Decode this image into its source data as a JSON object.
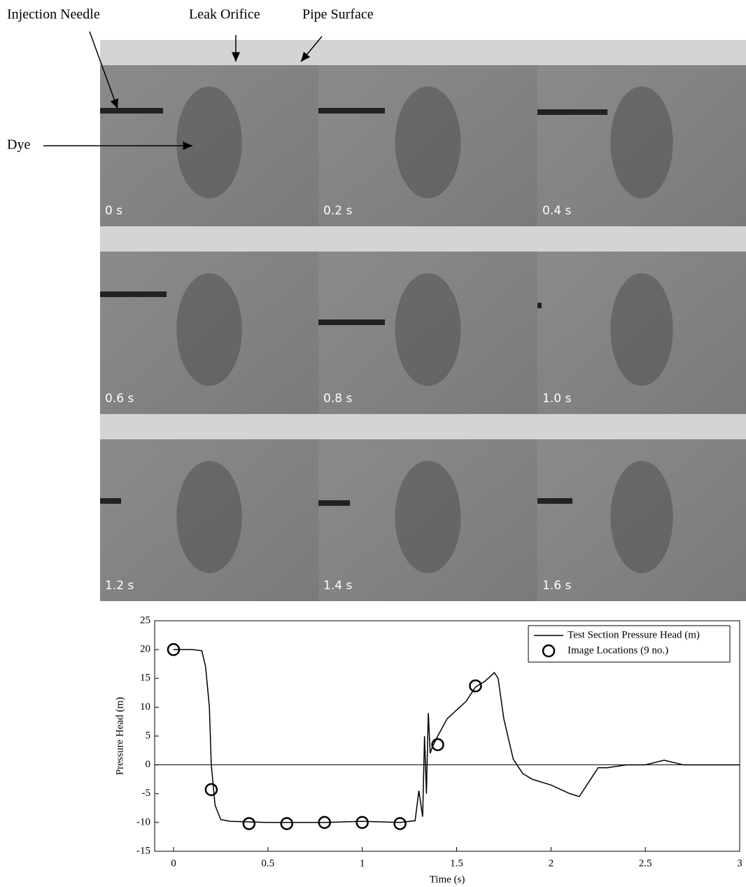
{
  "annotations": {
    "needle": "Injection Needle",
    "orifice": "Leak Orifice",
    "surface": "Pipe Surface",
    "dye": "Dye"
  },
  "panels": [
    "0 s",
    "0.2 s",
    "0.4 s",
    "0.6 s",
    "0.8 s",
    "1.0 s",
    "1.2 s",
    "1.4 s",
    "1.6 s"
  ],
  "chart_data": {
    "type": "line",
    "x_label": "Time (s)",
    "y_label": "Pressure Head (m)",
    "xlim": [
      -0.1,
      3
    ],
    "ylim": [
      -15,
      25
    ],
    "xticks": [
      0,
      0.5,
      1,
      1.5,
      2,
      2.5,
      3
    ],
    "yticks": [
      -15,
      -10,
      -5,
      0,
      5,
      10,
      15,
      20,
      25
    ],
    "hline": 0,
    "legend": "upper right",
    "series": [
      {
        "name": "Test Section Pressure Head (m)",
        "color": "#000000",
        "style": "line",
        "x": [
          0,
          0.1,
          0.15,
          0.17,
          0.19,
          0.2,
          0.22,
          0.25,
          0.3,
          0.5,
          0.8,
          1.0,
          1.2,
          1.28,
          1.3,
          1.32,
          1.33,
          1.34,
          1.35,
          1.36,
          1.37,
          1.4,
          1.45,
          1.5,
          1.55,
          1.6,
          1.65,
          1.7,
          1.72,
          1.75,
          1.8,
          1.85,
          1.9,
          2.0,
          2.1,
          2.15,
          2.2,
          2.25,
          2.3,
          2.4,
          2.5,
          2.6,
          2.7,
          2.8,
          2.9,
          3.0
        ],
        "values": [
          20,
          20,
          19.8,
          17,
          10,
          0,
          -7,
          -9.5,
          -9.8,
          -10,
          -10,
          -9.8,
          -10,
          -9.7,
          -4.5,
          -9,
          5,
          -5,
          9,
          2,
          3,
          5,
          8,
          9.5,
          11,
          13.5,
          14.5,
          16,
          15,
          8,
          1,
          -1.5,
          -2.5,
          -3.5,
          -5,
          -5.5,
          -3,
          -0.5,
          -0.5,
          0,
          0,
          0.8,
          0,
          0,
          0,
          0
        ]
      },
      {
        "name": "Image Locations (9 no.)",
        "color": "#000000",
        "style": "markers",
        "x": [
          0,
          0.2,
          0.4,
          0.6,
          0.8,
          1.0,
          1.2,
          1.4,
          1.6
        ],
        "values": [
          20,
          -4.3,
          -10.2,
          -10.2,
          -10,
          -10,
          -10.2,
          3.5,
          13.7
        ]
      }
    ]
  }
}
